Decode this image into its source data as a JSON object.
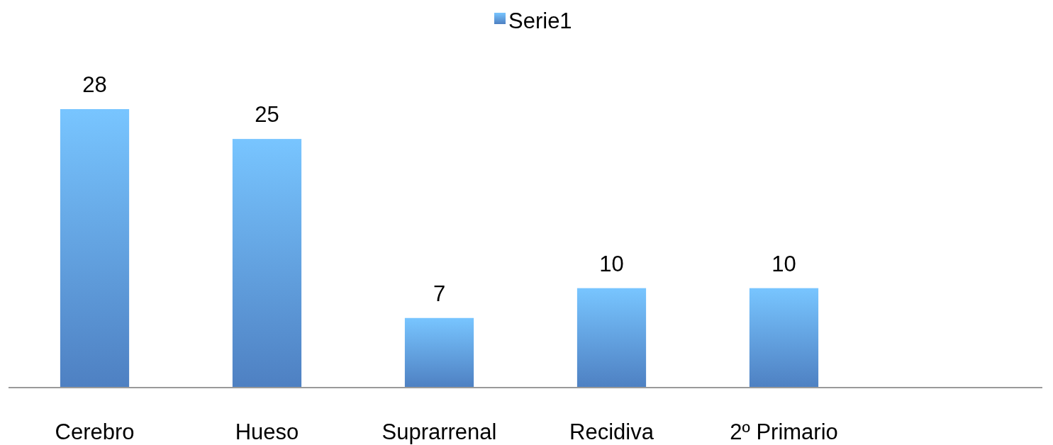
{
  "chart_data": {
    "type": "bar",
    "categories": [
      "Cerebro",
      "Hueso",
      "Suprarrenal",
      "Recidiva",
      "2º Primario",
      null
    ],
    "series": [
      {
        "name": "Serie1",
        "color": "#5a94e0",
        "values": [
          28,
          25,
          7,
          10,
          10,
          null
        ]
      }
    ],
    "data_labels": true,
    "legend": "top"
  }
}
